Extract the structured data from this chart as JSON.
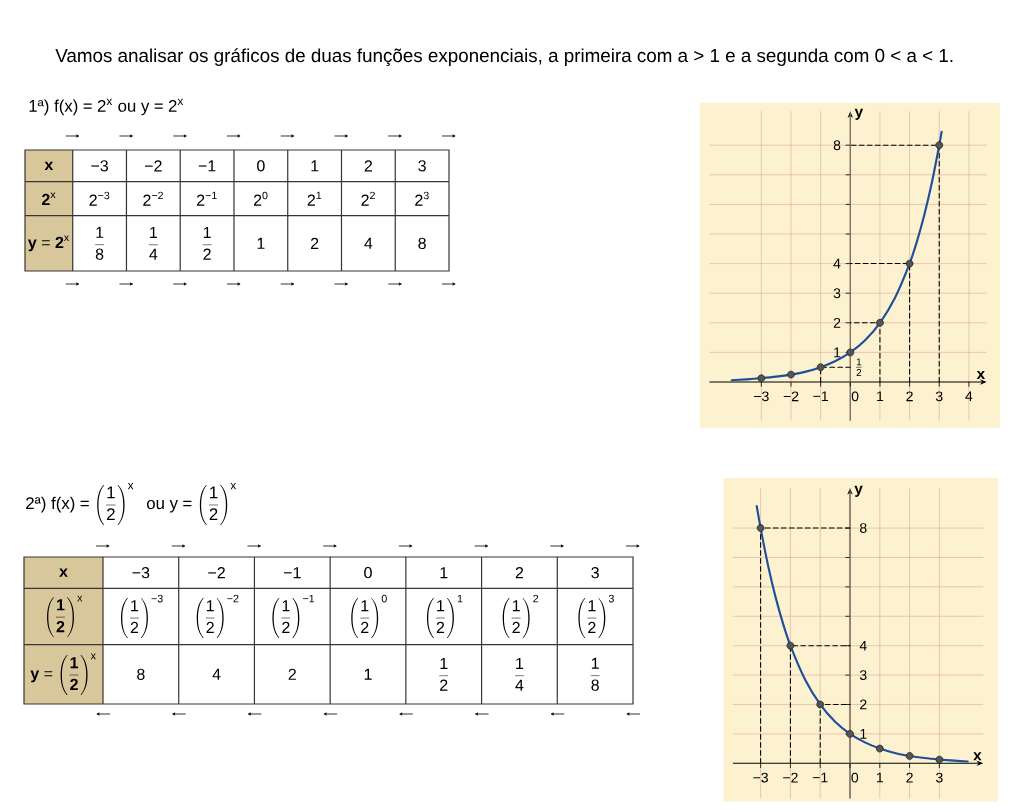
{
  "chart_data": [
    {
      "type": "line",
      "title": "Vamos analisar os gráficos de duas funções exponenciais, a primeira com a > 1 e a segunda com 0 < a < 1.",
      "xlabel": "x",
      "ylabel": "y",
      "xlim": [
        -4.75,
        4.6
      ],
      "ylim": [
        -1.3,
        9.15
      ],
      "xticks": [
        {
          "value": -3,
          "label": "−3"
        },
        {
          "value": -2,
          "label": "−2"
        },
        {
          "value": -1,
          "label": "−1"
        },
        0,
        1,
        2,
        3,
        4
      ],
      "yticks": [
        1,
        2,
        3,
        4,
        {
          "value": 5,
          "label": null
        },
        {
          "value": 6,
          "label": null
        },
        {
          "value": 7,
          "label": null
        },
        8
      ],
      "grid": true,
      "annotations": [
        "1\\mathrm{ª})\\ \\mathrm{f(x)} = 2^{\\mathrm{x}}\\ \\mathrm{ou}\\ \\mathrm{y} = 2^{\\mathrm{x}}",
        "\\textbf{x}",
        "\\textbf{2}^{\\mathrm{x}}",
        "\\textbf{y} = \\textbf{2}^{\\mathrm{x}}",
        "−3",
        "−2",
        "−1",
        "0",
        "1",
        "2",
        "3",
        "2^{−3}",
        "2^{−2}",
        "2^{−1}",
        "2^{0}",
        "2^{1}",
        "2^{2}",
        "2^{3}",
        "\\frac{1}{8}",
        "\\frac{1}{4}",
        "\\frac{1}{2}",
        "1",
        "2",
        "4",
        "8",
        {
          "text": "\\frac{1}{2}",
          "x": 0,
          "y": 0.5
        }
      ],
      "series": [
        {
          "type": "line",
          "color": "#000000",
          "line_style": "dashed",
          "x": [
            -1,
            -1,
            0
          ],
          "values": [
            0,
            0.5,
            0.5
          ]
        },
        {
          "type": "line",
          "color": "#000000",
          "line_style": "dashed",
          "x": [
            1,
            1,
            0
          ],
          "values": [
            0,
            2,
            2
          ]
        },
        {
          "type": "line",
          "color": "#000000",
          "line_style": "dashed",
          "x": [
            2,
            2,
            0
          ],
          "values": [
            0,
            4,
            4
          ]
        },
        {
          "type": "line",
          "color": "#000000",
          "line_style": "dashed",
          "x": [
            3,
            3,
            0
          ],
          "values": [
            0,
            8,
            8
          ]
        },
        {
          "type": "line",
          "color": "#1f4e9c",
          "x": [
            -4,
            -3.5,
            -3,
            -2.5,
            -2,
            -1.5,
            -1,
            -0.5,
            0,
            0.5,
            1,
            1.5,
            2,
            2.25,
            2.5,
            2.75,
            3,
            3.08
          ],
          "values": [
            0.06,
            0.09,
            0.13,
            0.18,
            0.25,
            0.35,
            0.5,
            0.71,
            1,
            1.41,
            2,
            2.83,
            4,
            4.76,
            5.66,
            6.73,
            8,
            8.45
          ]
        },
        {
          "type": "scatter",
          "color": "#555555",
          "marker": "circle",
          "x": [
            -3,
            -2,
            -1,
            0,
            1,
            2,
            3
          ],
          "values": [
            0.125,
            0.25,
            0.5,
            1,
            2,
            4,
            8
          ]
        }
      ]
    },
    {
      "type": "line",
      "xlabel": "x",
      "ylabel": "y",
      "xlim": [
        -3.93,
        4.47
      ],
      "ylim": [
        -1.2,
        9.36
      ],
      "xticks": [
        {
          "value": -3,
          "label": "−3"
        },
        {
          "value": -2,
          "label": "−2"
        },
        {
          "value": -1,
          "label": "−1"
        },
        0,
        1,
        2,
        3
      ],
      "yticks": [
        1,
        2,
        3,
        4,
        {
          "value": 5,
          "label": null
        },
        {
          "value": 6,
          "label": null
        },
        {
          "value": 7,
          "label": null
        },
        8
      ],
      "grid": true,
      "annotations": [
        "2\\mathrm{ª})\\ \\mathrm{f(x)} = \\left(\\frac{1}{2}\\right)^{\\mathrm{x}}\\ \\ \\mathrm{ou}\\ \\mathrm{y} = \\left(\\frac{1}{2}\\right)^{\\mathrm{x}}",
        "\\textbf{x}",
        "\\left(\\frac{\\textbf{1}}{\\textbf{2}}\\right)^{\\mathrm{x}}",
        "\\textbf{y} = \\left(\\frac{\\textbf{1}}{\\textbf{2}}\\right)^{\\mathrm{x}}",
        "−3",
        "−2",
        "−1",
        "0",
        "1",
        "2",
        "3",
        "\\left(\\frac{1}{2}\\right)^{−3}",
        "\\left(\\frac{1}{2}\\right)^{−2}",
        "\\left(\\frac{1}{2}\\right)^{−1}",
        "\\left(\\frac{1}{2}\\right)^{0}",
        "\\left(\\frac{1}{2}\\right)^{1}",
        "\\left(\\frac{1}{2}\\right)^{2}",
        "\\left(\\frac{1}{2}\\right)^{3}",
        "8",
        "4",
        "2",
        "1",
        "\\frac{1}{2}",
        "\\frac{1}{4}",
        "\\frac{1}{8}"
      ],
      "series": [
        {
          "type": "line",
          "color": "#000000",
          "line_style": "dashed",
          "x": [
            -3,
            -3,
            0
          ],
          "values": [
            0,
            8,
            8
          ]
        },
        {
          "type": "line",
          "color": "#000000",
          "line_style": "dashed",
          "x": [
            -2,
            -2,
            0
          ],
          "values": [
            0,
            4,
            4
          ]
        },
        {
          "type": "line",
          "color": "#000000",
          "line_style": "dashed",
          "x": [
            -1,
            -1,
            0
          ],
          "values": [
            0,
            2,
            2
          ]
        },
        {
          "type": "line",
          "color": "#1f4e9c",
          "x": [
            -3.13,
            -3,
            -2.75,
            -2.5,
            -2.25,
            -2,
            -1.5,
            -1,
            -0.5,
            0,
            0.5,
            1,
            1.5,
            2,
            2.5,
            3,
            3.5,
            3.95
          ],
          "values": [
            8.75,
            8,
            6.73,
            5.66,
            4.76,
            4,
            2.83,
            2,
            1.41,
            1,
            0.71,
            0.5,
            0.35,
            0.25,
            0.18,
            0.13,
            0.09,
            0.06
          ]
        },
        {
          "type": "scatter",
          "color": "#555555",
          "marker": "circle",
          "x": [
            -3,
            -2,
            -1,
            0,
            1,
            2,
            3
          ],
          "values": [
            8,
            4,
            2,
            1,
            0.5,
            0.25,
            0.125
          ]
        }
      ]
    }
  ]
}
